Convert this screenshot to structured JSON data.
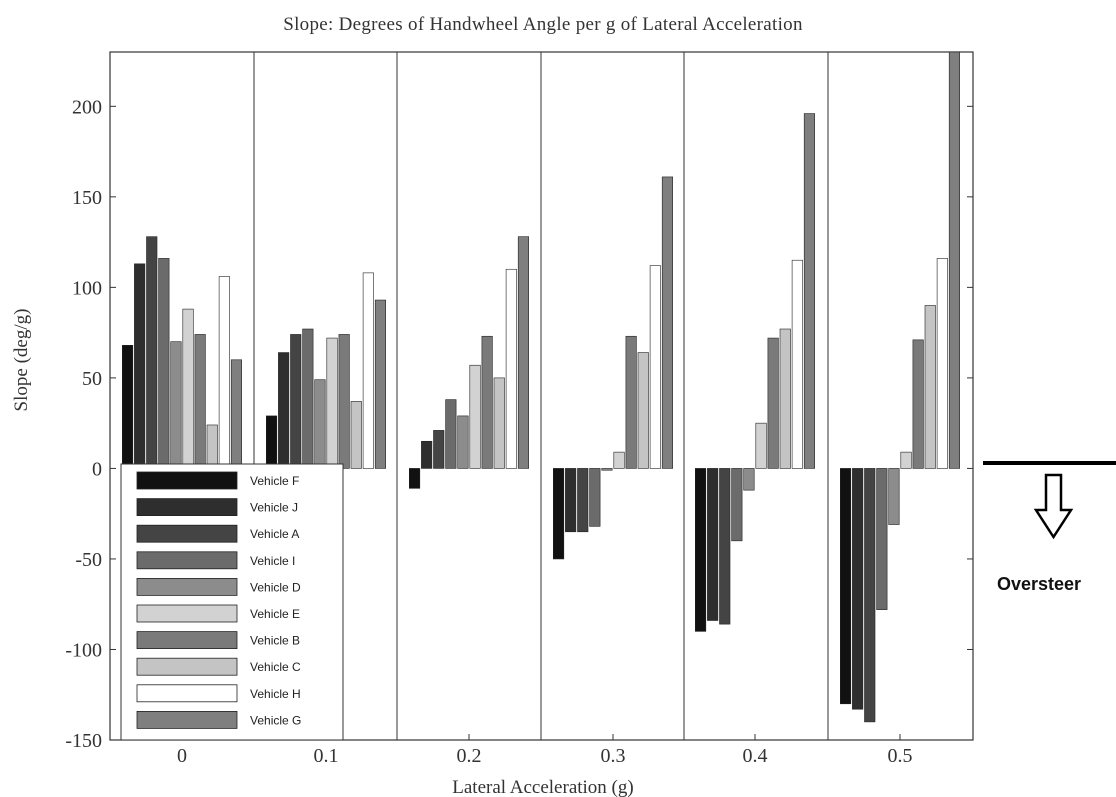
{
  "chart_data": {
    "type": "bar",
    "title": "Slope: Degrees of Handwheel Angle per g of Lateral Acceleration",
    "xlabel": "Lateral Acceleration (g)",
    "ylabel": "Slope (deg/g)",
    "ylim": [
      -150,
      230
    ],
    "yticks": [
      -150,
      -100,
      -50,
      0,
      50,
      100,
      150,
      200
    ],
    "categories": [
      "0",
      "0.1",
      "0.2",
      "0.3",
      "0.4",
      "0.5"
    ],
    "series": [
      {
        "name": "Vehicle F",
        "color": "#111111",
        "values": [
          68,
          29,
          -11,
          -50,
          -90,
          -130
        ]
      },
      {
        "name": "Vehicle J",
        "color": "#2e2e2e",
        "values": [
          113,
          64,
          15,
          -35,
          -84,
          -133
        ]
      },
      {
        "name": "Vehicle A",
        "color": "#444444",
        "values": [
          128,
          74,
          21,
          -35,
          -86,
          -140
        ]
      },
      {
        "name": "Vehicle I",
        "color": "#6b6b6b",
        "values": [
          116,
          77,
          38,
          -32,
          -40,
          -78
        ]
      },
      {
        "name": "Vehicle D",
        "color": "#8c8c8c",
        "values": [
          70,
          49,
          29,
          -1,
          -12,
          -31
        ]
      },
      {
        "name": "Vehicle E",
        "color": "#d2d2d2",
        "values": [
          88,
          72,
          57,
          9,
          25,
          9
        ]
      },
      {
        "name": "Vehicle B",
        "color": "#7a7a7a",
        "values": [
          74,
          74,
          73,
          73,
          72,
          71
        ]
      },
      {
        "name": "Vehicle C",
        "color": "#c4c4c4",
        "values": [
          24,
          37,
          50,
          64,
          77,
          90
        ]
      },
      {
        "name": "Vehicle H",
        "color": "#ffffff",
        "values": [
          106,
          108,
          110,
          112,
          115,
          116
        ]
      },
      {
        "name": "Vehicle G",
        "color": "#7f7f7f",
        "values": [
          60,
          93,
          128,
          161,
          196,
          230
        ]
      }
    ],
    "grid": false,
    "legend": "bottom-left",
    "annotation": "Oversteer"
  }
}
